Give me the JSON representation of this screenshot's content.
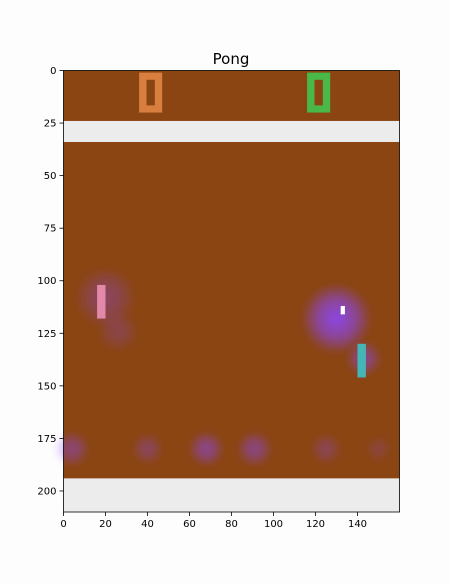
{
  "title": "Pong",
  "axes": {
    "x_ticks": [
      "0",
      "20",
      "40",
      "60",
      "80",
      "100",
      "120",
      "140"
    ],
    "y_ticks": [
      "0",
      "25",
      "50",
      "75",
      "100",
      "125",
      "150",
      "175",
      "200"
    ],
    "x_range": [
      0,
      160
    ],
    "y_range": [
      210,
      0
    ]
  },
  "colors": {
    "field": "#8b4513",
    "wall": "#ececec",
    "score_left": "#d87e3e",
    "score_right": "#49b849",
    "paddle_left": "#e289a9",
    "paddle_right": "#45b6b6",
    "ball": "#ffffff",
    "heat": "#8c46ff"
  },
  "scene": {
    "top_wall": {
      "y": [
        24,
        34
      ]
    },
    "bottom_wall": {
      "y": [
        194,
        210
      ]
    },
    "score_left": {
      "x": [
        36,
        47
      ],
      "y": [
        1,
        20
      ],
      "value": "0"
    },
    "score_right": {
      "x": [
        116,
        127
      ],
      "y": [
        1,
        20
      ],
      "value": "0"
    },
    "paddle_left": {
      "x": [
        16,
        20
      ],
      "y": [
        102,
        118
      ]
    },
    "paddle_right": {
      "x": [
        140,
        144
      ],
      "y": [
        130,
        146
      ]
    },
    "ball": {
      "x": [
        132,
        134
      ],
      "y": [
        112,
        116
      ]
    },
    "heat_spots": [
      {
        "x": 20,
        "y": 108,
        "r": 12,
        "intensity": 0.35
      },
      {
        "x": 26,
        "y": 124,
        "r": 8,
        "intensity": 0.25
      },
      {
        "x": 130,
        "y": 118,
        "r": 14,
        "intensity": 0.9
      },
      {
        "x": 143,
        "y": 137,
        "r": 7,
        "intensity": 0.55
      },
      {
        "x": 4,
        "y": 180,
        "r": 7,
        "intensity": 0.45
      },
      {
        "x": 40,
        "y": 180,
        "r": 6,
        "intensity": 0.35
      },
      {
        "x": 68,
        "y": 180,
        "r": 7,
        "intensity": 0.55
      },
      {
        "x": 91,
        "y": 180,
        "r": 7,
        "intensity": 0.5
      },
      {
        "x": 125,
        "y": 180,
        "r": 6,
        "intensity": 0.3
      },
      {
        "x": 150,
        "y": 180,
        "r": 5,
        "intensity": 0.2
      }
    ]
  }
}
